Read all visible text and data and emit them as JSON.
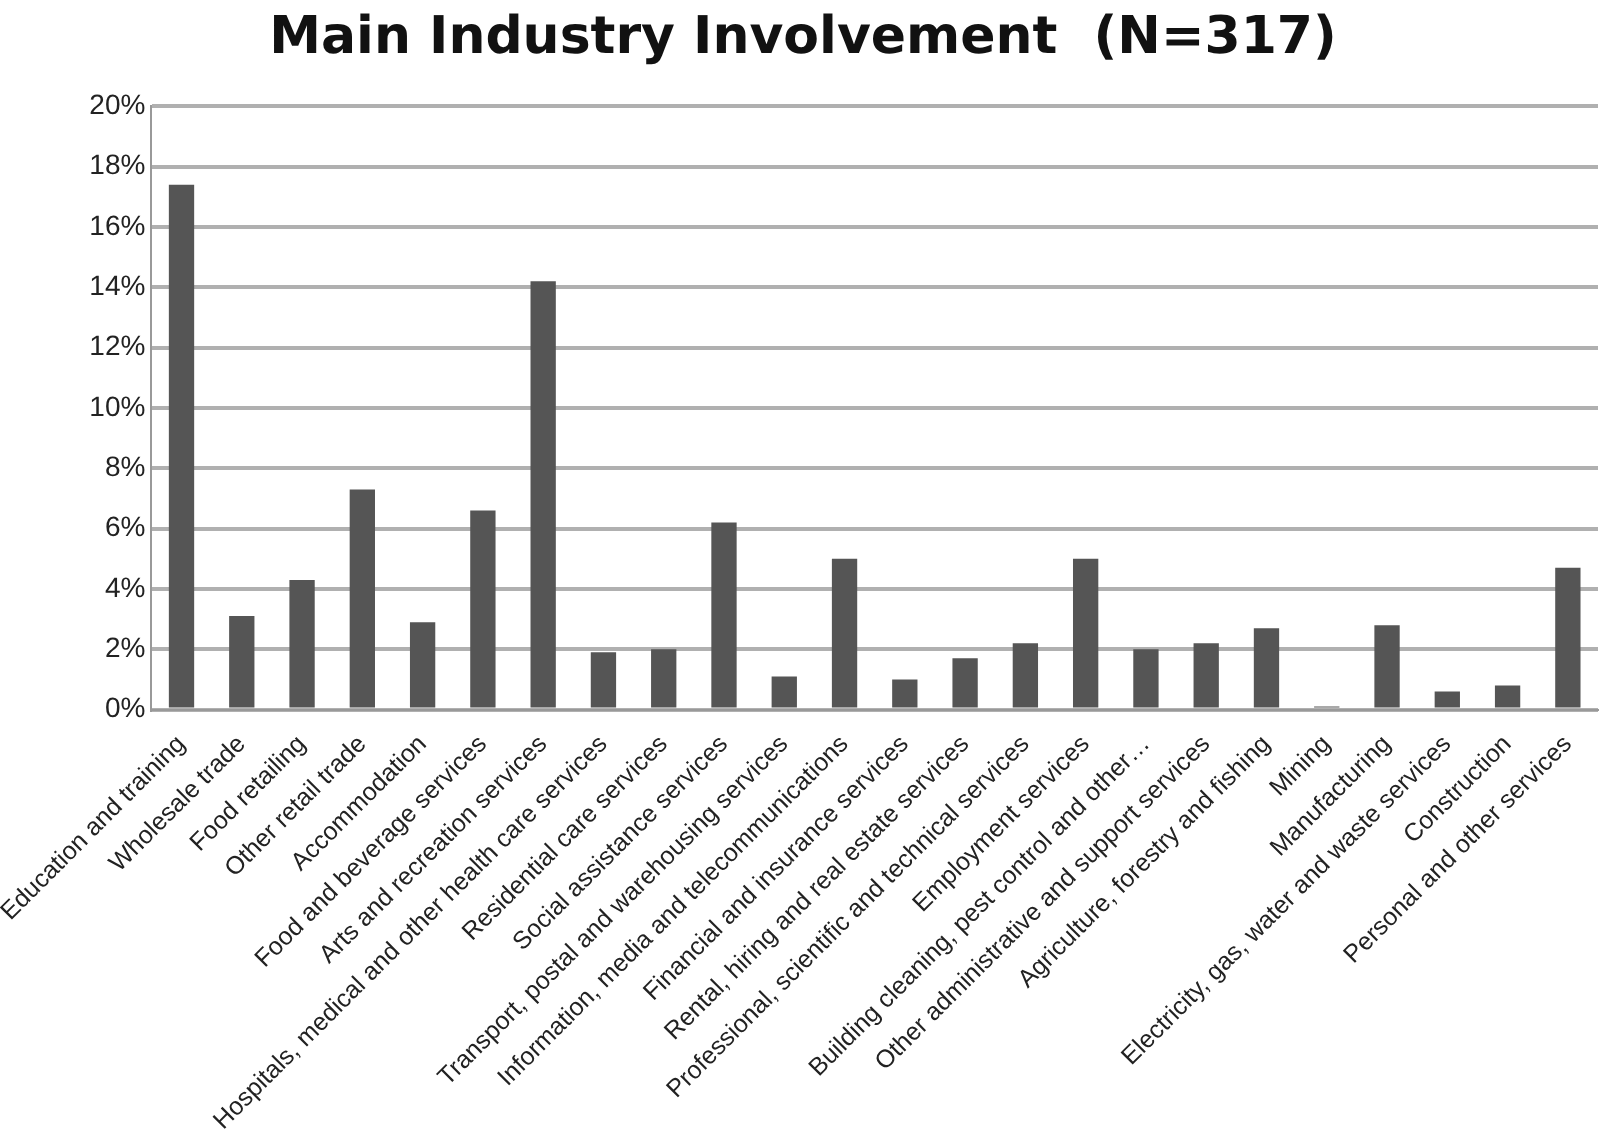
{
  "chart_data": {
    "type": "bar",
    "title": "Main Industry Involvement  (N=317)",
    "categories": [
      "Education and training",
      "Wholesale trade",
      "Food retailing",
      "Other retail trade",
      "Accommodation",
      "Food and beverage services",
      "Arts and recreation services",
      "Hospitals, medical and other health care services",
      "Residential care services",
      "Social assistance services",
      "Transport, postal and warehousing services",
      "Information, media and telecommunications",
      "Financial and insurance services",
      "Rental, hiring and real estate services",
      "Professional, scientific and technical services",
      "Employment services",
      "Building cleaning, pest control and other…",
      "Other administrative and support services",
      "Agriculture, forestry and fishing",
      "Mining",
      "Manufacturing",
      "Electricity, gas, water and waste services",
      "Construction",
      "Personal and other services"
    ],
    "values": [
      17.4,
      3.1,
      4.3,
      7.3,
      2.9,
      6.6,
      14.2,
      1.9,
      2.0,
      6.2,
      1.1,
      5.0,
      1.0,
      1.7,
      2.2,
      5.0,
      2.0,
      2.2,
      2.7,
      0.1,
      2.8,
      0.6,
      0.8,
      4.7
    ],
    "color": "#555555",
    "ylim": [
      0,
      20
    ],
    "yticks": [
      {
        "value": 0,
        "label": "0%"
      },
      {
        "value": 2,
        "label": "2%"
      },
      {
        "value": 4,
        "label": "4%"
      },
      {
        "value": 6,
        "label": "6%"
      },
      {
        "value": 8,
        "label": "8%"
      },
      {
        "value": 10,
        "label": "10%"
      },
      {
        "value": 12,
        "label": "12%"
      },
      {
        "value": 14,
        "label": "14%"
      },
      {
        "value": 16,
        "label": "16%"
      },
      {
        "value": 18,
        "label": "18%"
      },
      {
        "value": 20,
        "label": "20%"
      }
    ],
    "grid": "y"
  }
}
